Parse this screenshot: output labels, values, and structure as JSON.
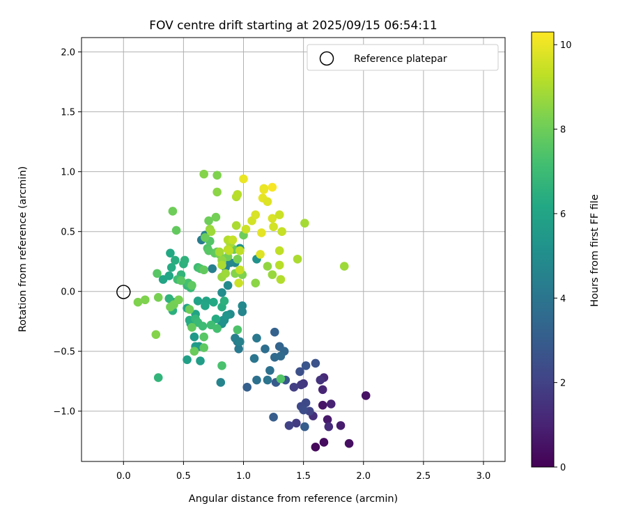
{
  "chart_data": {
    "type": "scatter",
    "title": "FOV centre drift starting at 2025/09/15 06:54:11",
    "xlabel": "Angular distance from reference (arcmin)",
    "ylabel": "Rotation from reference (arcmin)",
    "xlim": [
      -0.35,
      3.18
    ],
    "ylim": [
      -1.42,
      2.12
    ],
    "xticks": [
      0.0,
      0.5,
      1.0,
      1.5,
      2.0,
      2.5,
      3.0
    ],
    "xtick_labels": [
      "0.0",
      "0.5",
      "1.0",
      "1.5",
      "2.0",
      "2.5",
      "3.0"
    ],
    "yticks": [
      -1.0,
      -0.5,
      0.0,
      0.5,
      1.0,
      1.5,
      2.0
    ],
    "ytick_labels": [
      "−1.0",
      "−0.5",
      "0.0",
      "0.5",
      "1.0",
      "1.5",
      "2.0"
    ],
    "grid": true,
    "legend": {
      "placement": "upper right",
      "entries": [
        "Reference platepar"
      ]
    },
    "colorbar": {
      "label": "Hours from first FF file",
      "colormap": "viridis",
      "range": [
        0,
        10.3
      ],
      "ticks": [
        0,
        2,
        4,
        6,
        8,
        10
      ],
      "tick_labels": [
        "0",
        "2",
        "4",
        "6",
        "8",
        "10"
      ]
    },
    "reference": {
      "x": 0.0,
      "y": 0.0
    },
    "points": [
      [
        1.6,
        -1.3,
        0.2
      ],
      [
        1.67,
        -1.26,
        0.3
      ],
      [
        1.88,
        -1.27,
        0.4
      ],
      [
        2.02,
        -0.87,
        0.5
      ],
      [
        1.66,
        -0.95,
        0.6
      ],
      [
        1.7,
        -1.07,
        0.7
      ],
      [
        1.81,
        -1.12,
        0.8
      ],
      [
        1.73,
        -0.94,
        1.0
      ],
      [
        1.66,
        -0.82,
        1.1
      ],
      [
        1.67,
        -0.72,
        1.2
      ],
      [
        1.71,
        -1.13,
        1.3
      ],
      [
        1.58,
        -1.04,
        1.4
      ],
      [
        1.64,
        -0.74,
        1.5
      ],
      [
        1.5,
        -0.77,
        1.6
      ],
      [
        1.48,
        -0.78,
        1.7
      ],
      [
        1.44,
        -1.1,
        1.8
      ],
      [
        1.42,
        -0.8,
        1.9
      ],
      [
        1.38,
        -1.12,
        2.0
      ],
      [
        1.55,
        -1.0,
        2.1
      ],
      [
        1.48,
        -0.96,
        2.2
      ],
      [
        1.52,
        -0.93,
        2.3
      ],
      [
        1.5,
        -0.99,
        2.4
      ],
      [
        1.47,
        -0.67,
        2.5
      ],
      [
        1.6,
        -0.6,
        2.6
      ],
      [
        1.52,
        -0.62,
        2.7
      ],
      [
        1.35,
        -0.74,
        2.8
      ],
      [
        1.27,
        -0.76,
        2.9
      ],
      [
        1.25,
        -1.05,
        3.0
      ],
      [
        1.51,
        -1.13,
        3.0
      ],
      [
        1.03,
        -0.8,
        3.1
      ],
      [
        1.26,
        -0.34,
        3.2
      ],
      [
        1.3,
        -0.46,
        3.3
      ],
      [
        1.34,
        -0.5,
        3.4
      ],
      [
        1.26,
        -0.55,
        3.5
      ],
      [
        1.31,
        -0.54,
        3.6
      ],
      [
        1.18,
        -0.48,
        3.7
      ],
      [
        1.22,
        -0.66,
        3.8
      ],
      [
        1.11,
        -0.74,
        3.8
      ],
      [
        1.2,
        -0.74,
        3.9
      ],
      [
        1.09,
        -0.56,
        4.0
      ],
      [
        1.11,
        -0.39,
        4.1
      ],
      [
        0.96,
        -0.48,
        4.2
      ],
      [
        0.95,
        -0.42,
        4.3
      ],
      [
        0.93,
        -0.39,
        4.4
      ],
      [
        0.97,
        -0.42,
        4.5
      ],
      [
        0.81,
        -0.76,
        4.6
      ],
      [
        0.99,
        -0.17,
        4.7
      ],
      [
        0.99,
        -0.12,
        4.8
      ],
      [
        0.89,
        -0.19,
        4.9
      ],
      [
        0.84,
        -0.24,
        5.0
      ],
      [
        0.82,
        -0.27,
        5.1
      ],
      [
        0.83,
        -0.24,
        5.2
      ],
      [
        0.86,
        -0.2,
        5.3
      ],
      [
        0.63,
        -0.46,
        5.4
      ],
      [
        0.59,
        -0.38,
        5.5
      ],
      [
        0.6,
        -0.46,
        5.6
      ],
      [
        0.64,
        -0.58,
        5.7
      ],
      [
        0.53,
        -0.57,
        5.8
      ],
      [
        0.62,
        -0.08,
        5.9
      ],
      [
        0.69,
        -0.08,
        6.0
      ],
      [
        0.68,
        -0.12,
        6.1
      ],
      [
        0.75,
        -0.09,
        6.2
      ],
      [
        0.77,
        -0.23,
        6.3
      ],
      [
        0.82,
        -0.13,
        6.4
      ],
      [
        0.84,
        -0.08,
        6.5
      ],
      [
        0.65,
        0.43,
        4.3
      ],
      [
        0.74,
        0.19,
        4.4
      ],
      [
        0.68,
        0.47,
        4.5
      ],
      [
        0.85,
        0.2,
        4.6
      ],
      [
        0.89,
        0.24,
        4.7
      ],
      [
        0.93,
        0.24,
        4.8
      ],
      [
        0.87,
        0.05,
        4.9
      ],
      [
        0.82,
        -0.01,
        5.0
      ],
      [
        0.97,
        0.36,
        5.1
      ],
      [
        1.11,
        0.27,
        5.2
      ],
      [
        0.6,
        -0.19,
        6.0
      ],
      [
        0.53,
        -0.14,
        6.1
      ],
      [
        0.56,
        -0.27,
        6.2
      ],
      [
        0.55,
        -0.24,
        6.3
      ],
      [
        0.42,
        -0.09,
        6.4
      ],
      [
        0.41,
        -0.16,
        6.5
      ],
      [
        0.38,
        -0.06,
        6.6
      ],
      [
        0.29,
        -0.72,
        6.7
      ],
      [
        0.6,
        -0.23,
        6.8
      ],
      [
        0.62,
        -0.26,
        6.9
      ],
      [
        0.66,
        -0.29,
        7.0
      ],
      [
        0.73,
        -0.28,
        7.1
      ],
      [
        0.78,
        -0.31,
        7.2
      ],
      [
        0.82,
        -0.62,
        7.3
      ],
      [
        0.95,
        -0.32,
        7.4
      ],
      [
        1.31,
        -0.73,
        7.5
      ],
      [
        0.67,
        -0.38,
        7.6
      ],
      [
        0.67,
        -0.47,
        7.7
      ],
      [
        0.57,
        -0.3,
        7.8
      ],
      [
        0.59,
        -0.5,
        7.9
      ],
      [
        0.55,
        -0.15,
        8.0
      ],
      [
        0.42,
        -0.11,
        8.1
      ],
      [
        0.39,
        -0.13,
        8.1
      ],
      [
        0.46,
        -0.07,
        8.2
      ],
      [
        0.29,
        -0.05,
        8.2
      ],
      [
        0.18,
        -0.07,
        8.3
      ],
      [
        0.12,
        -0.09,
        8.3
      ],
      [
        0.27,
        -0.36,
        8.4
      ],
      [
        0.33,
        0.1,
        6.0
      ],
      [
        0.38,
        0.13,
        6.1
      ],
      [
        0.39,
        0.32,
        6.2
      ],
      [
        0.4,
        0.2,
        6.3
      ],
      [
        0.43,
        0.26,
        6.4
      ],
      [
        0.5,
        0.23,
        6.5
      ],
      [
        0.51,
        0.26,
        6.6
      ],
      [
        0.48,
        0.14,
        6.7
      ],
      [
        0.53,
        0.05,
        6.8
      ],
      [
        0.56,
        0.03,
        6.9
      ],
      [
        0.62,
        0.2,
        7.0
      ],
      [
        0.45,
        0.1,
        7.1
      ],
      [
        0.54,
        0.07,
        7.2
      ],
      [
        0.64,
        0.19,
        7.3
      ],
      [
        0.7,
        0.36,
        7.4
      ],
      [
        0.72,
        0.42,
        7.5
      ],
      [
        0.71,
        0.34,
        7.6
      ],
      [
        0.76,
        0.32,
        7.7
      ],
      [
        0.78,
        0.33,
        7.8
      ],
      [
        0.92,
        0.35,
        7.9
      ],
      [
        1.0,
        0.47,
        8.0
      ],
      [
        0.87,
        0.29,
        8.1
      ],
      [
        0.95,
        0.27,
        8.2
      ],
      [
        0.99,
        0.14,
        8.3
      ],
      [
        0.93,
        0.15,
        8.4
      ],
      [
        1.1,
        0.07,
        8.5
      ],
      [
        1.2,
        0.21,
        8.6
      ],
      [
        1.24,
        0.14,
        8.7
      ],
      [
        0.28,
        0.15,
        7.6
      ],
      [
        0.44,
        0.51,
        7.8
      ],
      [
        0.41,
        0.67,
        8.0
      ],
      [
        0.48,
        0.09,
        7.6
      ],
      [
        0.57,
        0.05,
        7.7
      ],
      [
        0.67,
        0.18,
        7.8
      ],
      [
        0.68,
        0.45,
        7.9
      ],
      [
        0.71,
        0.59,
        8.0
      ],
      [
        0.77,
        0.62,
        8.1
      ],
      [
        0.8,
        0.31,
        8.2
      ],
      [
        0.78,
        0.97,
        8.3
      ],
      [
        0.67,
        0.98,
        8.4
      ],
      [
        0.78,
        0.83,
        8.5
      ],
      [
        0.82,
        0.26,
        8.6
      ],
      [
        0.82,
        0.12,
        8.7
      ],
      [
        0.85,
        0.15,
        8.8
      ],
      [
        0.89,
        0.4,
        8.9
      ],
      [
        0.94,
        0.55,
        9.0
      ],
      [
        0.94,
        0.79,
        9.1
      ],
      [
        0.95,
        0.81,
        9.2
      ],
      [
        0.97,
        0.34,
        9.3
      ],
      [
        0.97,
        0.18,
        9.4
      ],
      [
        1.02,
        0.52,
        9.5
      ],
      [
        1.07,
        0.59,
        9.6
      ],
      [
        1.1,
        0.64,
        9.7
      ],
      [
        1.14,
        0.31,
        9.8
      ],
      [
        1.15,
        0.49,
        9.9
      ],
      [
        1.16,
        0.78,
        9.9
      ],
      [
        1.2,
        0.75,
        9.8
      ],
      [
        1.24,
        0.61,
        9.7
      ],
      [
        1.25,
        0.54,
        9.6
      ],
      [
        1.3,
        0.64,
        9.5
      ],
      [
        1.32,
        0.5,
        9.4
      ],
      [
        1.3,
        0.34,
        9.3
      ],
      [
        1.3,
        0.22,
        9.2
      ],
      [
        1.31,
        0.1,
        9.1
      ],
      [
        1.45,
        0.27,
        9.0
      ],
      [
        1.51,
        0.57,
        8.9
      ],
      [
        1.84,
        0.21,
        8.8
      ],
      [
        0.72,
        0.52,
        8.7
      ],
      [
        0.73,
        0.5,
        8.8
      ],
      [
        0.8,
        0.33,
        8.9
      ],
      [
        0.82,
        0.22,
        9.0
      ],
      [
        0.87,
        0.43,
        9.1
      ],
      [
        0.87,
        0.35,
        9.2
      ],
      [
        0.88,
        0.34,
        9.3
      ],
      [
        0.91,
        0.43,
        9.4
      ],
      [
        0.96,
        0.07,
        9.5
      ],
      [
        1.0,
        0.94,
        10.0
      ],
      [
        1.17,
        0.85,
        10.1
      ],
      [
        1.24,
        0.87,
        10.2
      ],
      [
        1.17,
        0.86,
        10.0
      ]
    ]
  }
}
